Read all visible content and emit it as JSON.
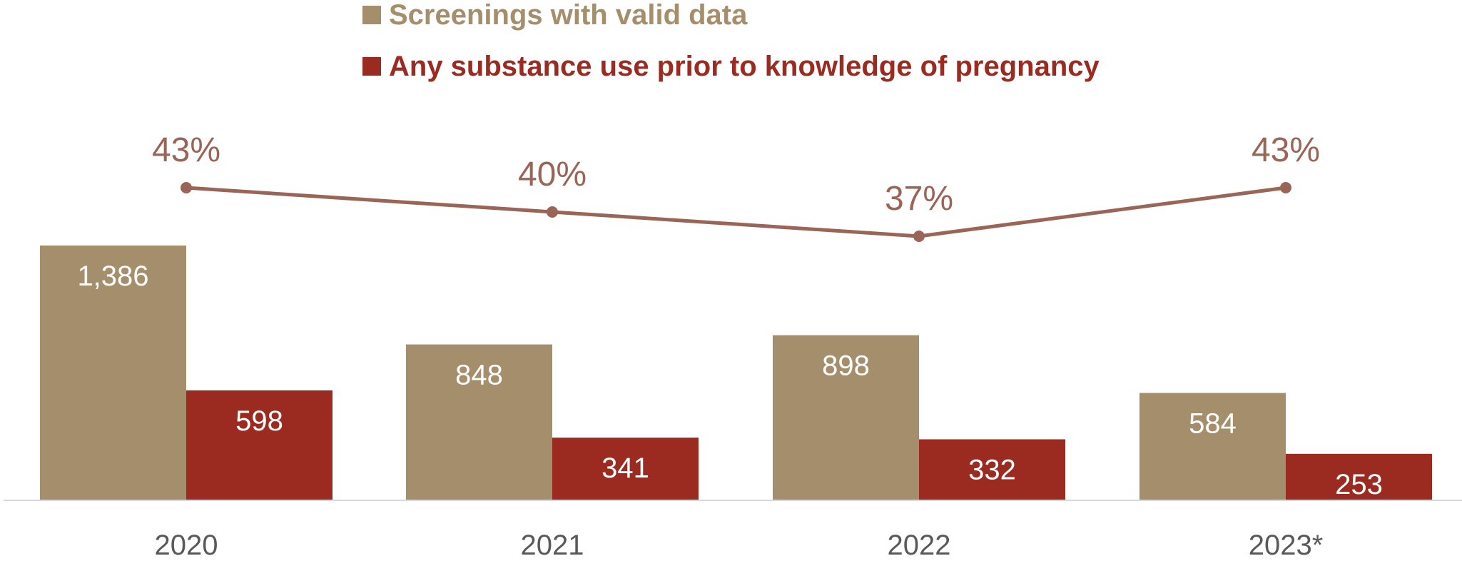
{
  "chart_data": {
    "type": "bar",
    "categories": [
      "2020",
      "2021",
      "2022",
      "2023*"
    ],
    "series": [
      {
        "name": "Screenings with valid data",
        "values": [
          1386,
          848,
          898,
          584
        ],
        "labels": [
          "1,386",
          "848",
          "898",
          "584"
        ],
        "color": "#a58e6b"
      },
      {
        "name": "Any substance use prior to knowledge of pregnancy",
        "values": [
          598,
          341,
          332,
          253
        ],
        "labels": [
          "598",
          "341",
          "332",
          "253"
        ],
        "color": "#9b2b20"
      }
    ],
    "line": {
      "values": [
        43,
        40,
        37,
        43
      ],
      "labels": [
        "43%",
        "40%",
        "37%",
        "43%"
      ],
      "color": "#9a6556"
    },
    "legend": {
      "position": "top",
      "items": [
        "Screenings with valid data",
        "Any substance use prior to knowledge of pregnancy"
      ]
    },
    "title": "",
    "xlabel": "",
    "ylabel": "",
    "ylim": [
      0,
      1386
    ],
    "grid": false
  }
}
